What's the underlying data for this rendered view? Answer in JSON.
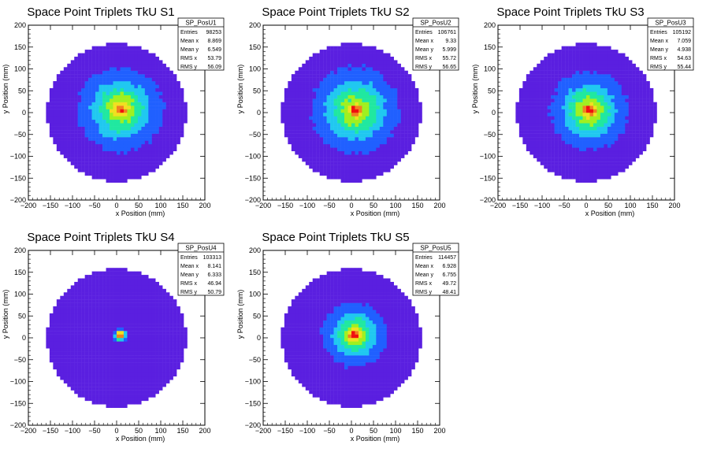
{
  "chart_data": [
    {
      "type": "heatmap",
      "title": "Space Point Triplets TkU S1",
      "xlabel": "x Position (mm)",
      "ylabel": "y Position (mm)",
      "xlim": [
        -200,
        200
      ],
      "ylim": [
        -200,
        200
      ],
      "xticks": [
        "−200",
        "−150",
        "−100",
        "−50",
        "0",
        "50",
        "100",
        "150",
        "200"
      ],
      "yticks": [
        "−200",
        "−150",
        "−100",
        "−50",
        "0",
        "50",
        "100",
        "150",
        "200"
      ],
      "spread": 0.95,
      "stats": {
        "name": "SP_PosU1",
        "entries": "98253",
        "mean_x": "8.869",
        "mean_y": "6.549",
        "rms_x": "53.79",
        "rms_y": "56.09"
      },
      "stat_labels": {
        "entries": "Entries",
        "mean_x": "Mean x",
        "mean_y": "Mean y",
        "rms_x": "RMS x",
        "rms_y": "RMS y"
      }
    },
    {
      "type": "heatmap",
      "title": "Space Point Triplets TkU S2",
      "xlabel": "x Position (mm)",
      "ylabel": "y Position (mm)",
      "xlim": [
        -200,
        200
      ],
      "ylim": [
        -200,
        200
      ],
      "xticks": [
        "−200",
        "−150",
        "−100",
        "−50",
        "0",
        "50",
        "100",
        "150",
        "200"
      ],
      "yticks": [
        "−200",
        "−150",
        "−100",
        "−50",
        "0",
        "50",
        "100",
        "150",
        "200"
      ],
      "spread": 1.0,
      "stats": {
        "name": "SP_PosU2",
        "entries": "106761",
        "mean_x": "9.33",
        "mean_y": "5.999",
        "rms_x": "55.72",
        "rms_y": "56.65"
      },
      "stat_labels": {
        "entries": "Entries",
        "mean_x": "Mean x",
        "mean_y": "Mean y",
        "rms_x": "RMS x",
        "rms_y": "RMS y"
      }
    },
    {
      "type": "heatmap",
      "title": "Space Point Triplets TkU S3",
      "xlabel": "x Position (mm)",
      "ylabel": "y Position (mm)",
      "xlim": [
        -200,
        200
      ],
      "ylim": [
        -200,
        200
      ],
      "xticks": [
        "−200",
        "−150",
        "−100",
        "−50",
        "0",
        "50",
        "100",
        "150",
        "200"
      ],
      "yticks": [
        "−200",
        "−150",
        "−100",
        "−50",
        "0",
        "50",
        "100",
        "150",
        "200"
      ],
      "spread": 0.8,
      "stats": {
        "name": "SP_PosU3",
        "entries": "105192",
        "mean_x": "7.059",
        "mean_y": "4.938",
        "rms_x": "54.63",
        "rms_y": "55.44"
      },
      "stat_labels": {
        "entries": "Entries",
        "mean_x": "Mean x",
        "mean_y": "Mean y",
        "rms_x": "RMS x",
        "rms_y": "RMS y"
      }
    },
    {
      "type": "heatmap",
      "title": "Space Point Triplets TkU S4",
      "xlabel": "x Position (mm)",
      "ylabel": "y Position (mm)",
      "xlim": [
        -200,
        200
      ],
      "ylim": [
        -200,
        200
      ],
      "xticks": [
        "−200",
        "−150",
        "−100",
        "−50",
        "0",
        "50",
        "100",
        "150",
        "200"
      ],
      "yticks": [
        "−200",
        "−150",
        "−100",
        "−50",
        "0",
        "50",
        "100",
        "150",
        "200"
      ],
      "spread": 0.12,
      "stats": {
        "name": "SP_PosU4",
        "entries": "103313",
        "mean_x": "8.141",
        "mean_y": "6.333",
        "rms_x": "46.94",
        "rms_y": "50.79"
      },
      "stat_labels": {
        "entries": "Entries",
        "mean_x": "Mean x",
        "mean_y": "Mean y",
        "rms_x": "RMS x",
        "rms_y": "RMS y"
      }
    },
    {
      "type": "heatmap",
      "title": "Space Point Triplets TkU S5",
      "xlabel": "x Position (mm)",
      "ylabel": "y Position (mm)",
      "xlim": [
        -200,
        200
      ],
      "ylim": [
        -200,
        200
      ],
      "xticks": [
        "−200",
        "−150",
        "−100",
        "−50",
        "0",
        "50",
        "100",
        "150",
        "200"
      ],
      "yticks": [
        "−200",
        "−150",
        "−100",
        "−50",
        "0",
        "50",
        "100",
        "150",
        "200"
      ],
      "spread": 0.55,
      "stats": {
        "name": "SP_PosU5",
        "entries": "114457",
        "mean_x": "6.928",
        "mean_y": "6.755",
        "rms_x": "49.72",
        "rms_y": "48.41"
      },
      "stat_labels": {
        "entries": "Entries",
        "mean_x": "Mean x",
        "mean_y": "Mean y",
        "rms_x": "RMS x",
        "rms_y": "RMS y"
      }
    }
  ],
  "colors": {
    "palette": [
      "#5a1fe0",
      "#2060ff",
      "#20c8f0",
      "#20e8a0",
      "#a0f020",
      "#f0e020",
      "#f08020",
      "#f01010"
    ],
    "background": "#ffffff",
    "frame": "#000000"
  }
}
